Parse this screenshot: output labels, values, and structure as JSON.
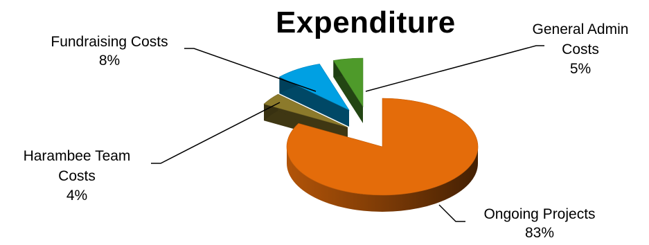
{
  "chart_data": {
    "type": "pie",
    "title": "Expenditure",
    "style": "3d-exploded",
    "slices": [
      {
        "label": "Ongoing Projects",
        "value": 83,
        "value_label": "83%",
        "color": "#E46C0A"
      },
      {
        "label": "Harambee Team Costs",
        "value": 4,
        "value_label": "4%",
        "color": "#8C7A2B"
      },
      {
        "label": "Fundraising Costs",
        "value": 8,
        "value_label": "8%",
        "color": "#00A0E3"
      },
      {
        "label": "General Admin Costs",
        "value": 5,
        "value_label": "5%",
        "color": "#4E9A2A"
      }
    ]
  }
}
